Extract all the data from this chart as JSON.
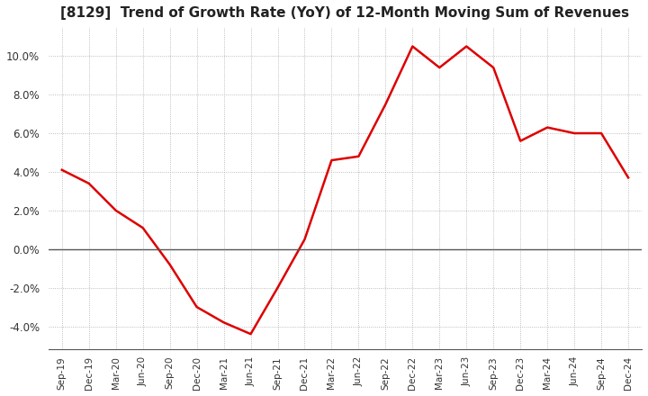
{
  "title": "[8129]  Trend of Growth Rate (YoY) of 12-Month Moving Sum of Revenues",
  "title_fontsize": 11,
  "line_color": "#dd0000",
  "background_color": "#ffffff",
  "grid_color": "#aaaaaa",
  "ylim": [
    -0.052,
    0.115
  ],
  "yticks": [
    -0.04,
    -0.02,
    0.0,
    0.02,
    0.04,
    0.06,
    0.08,
    0.1
  ],
  "x_labels": [
    "Sep-19",
    "Dec-19",
    "Mar-20",
    "Jun-20",
    "Sep-20",
    "Dec-20",
    "Mar-21",
    "Jun-21",
    "Sep-21",
    "Dec-21",
    "Mar-22",
    "Jun-22",
    "Sep-22",
    "Dec-22",
    "Mar-23",
    "Jun-23",
    "Sep-23",
    "Dec-23",
    "Mar-24",
    "Jun-24",
    "Sep-24",
    "Dec-24"
  ],
  "data_x": [
    0,
    1,
    2,
    3,
    4,
    5,
    6,
    7,
    8,
    9,
    10,
    11,
    12,
    13,
    14,
    15,
    16,
    17,
    18,
    19,
    20,
    21
  ],
  "data_y": [
    0.041,
    0.034,
    0.02,
    0.011,
    -0.008,
    -0.03,
    -0.038,
    -0.044,
    -0.02,
    0.005,
    0.046,
    0.048,
    0.075,
    0.105,
    0.094,
    0.105,
    0.094,
    0.056,
    0.063,
    0.06,
    0.06,
    0.037
  ]
}
